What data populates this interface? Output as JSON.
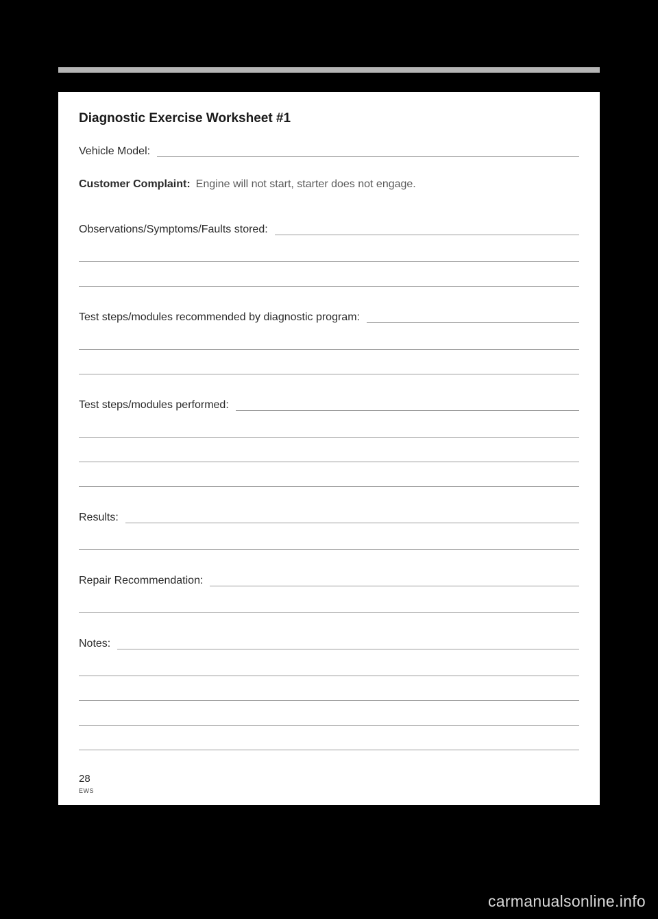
{
  "title": "Diagnostic Exercise Worksheet  #1",
  "vehicle_model_label": "Vehicle Model:",
  "complaint_label": "Customer Complaint:",
  "complaint_text": "Engine will not start, starter does not engage.",
  "observations_label": "Observations/Symptoms/Faults stored:",
  "test_recommended_label": "Test steps/modules recommended by diagnostic program:",
  "test_performed_label": "Test steps/modules performed:",
  "results_label": "Results:",
  "repair_label": "Repair Recommendation:",
  "notes_label": "Notes:",
  "page_number": "28",
  "system_code": "EWS",
  "watermark": "carmanualsonline.info",
  "styling": {
    "page_bg": "#000000",
    "content_bg": "#ffffff",
    "gray_bar_color": "#b5b5b5",
    "line_color": "#9a9a9a",
    "title_fontsize": 19,
    "body_fontsize": 16,
    "watermark_color": "#d9d9d9",
    "watermark_fontsize": 23,
    "text_color": "#2a2a2a",
    "secondary_text_color": "#5a5a5a"
  },
  "sections": {
    "observations_blank_lines": 2,
    "test_recommended_blank_lines": 2,
    "test_performed_blank_lines": 3,
    "results_blank_lines": 1,
    "repair_blank_lines": 1,
    "notes_blank_lines": 4
  }
}
